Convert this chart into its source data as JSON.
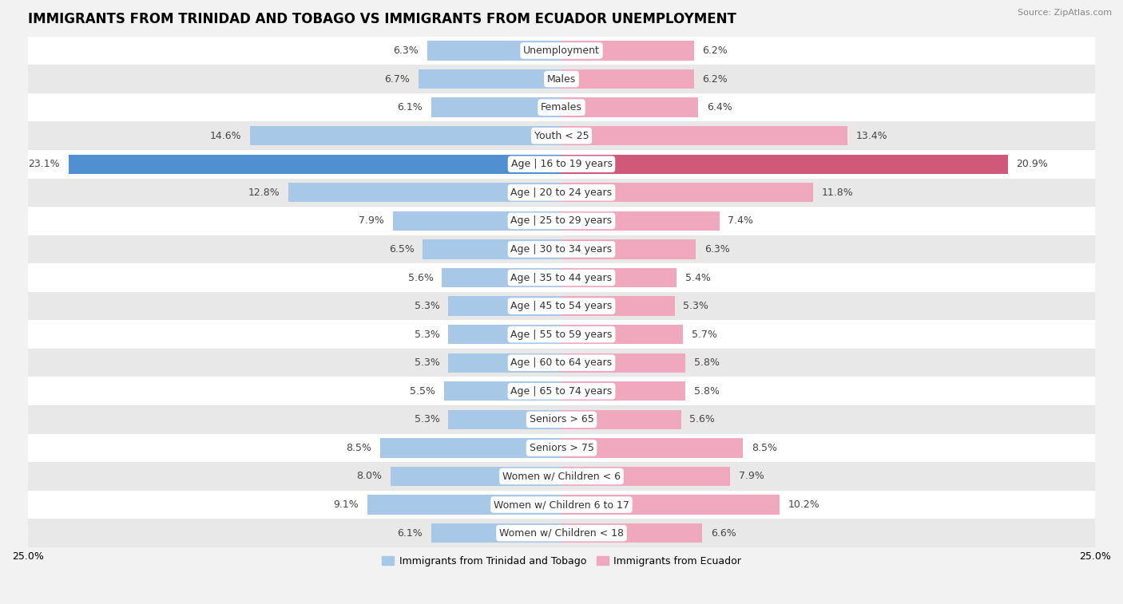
{
  "title": "IMMIGRANTS FROM TRINIDAD AND TOBAGO VS IMMIGRANTS FROM ECUADOR UNEMPLOYMENT",
  "source": "Source: ZipAtlas.com",
  "categories": [
    "Unemployment",
    "Males",
    "Females",
    "Youth < 25",
    "Age | 16 to 19 years",
    "Age | 20 to 24 years",
    "Age | 25 to 29 years",
    "Age | 30 to 34 years",
    "Age | 35 to 44 years",
    "Age | 45 to 54 years",
    "Age | 55 to 59 years",
    "Age | 60 to 64 years",
    "Age | 65 to 74 years",
    "Seniors > 65",
    "Seniors > 75",
    "Women w/ Children < 6",
    "Women w/ Children 6 to 17",
    "Women w/ Children < 18"
  ],
  "left_values": [
    6.3,
    6.7,
    6.1,
    14.6,
    23.1,
    12.8,
    7.9,
    6.5,
    5.6,
    5.3,
    5.3,
    5.3,
    5.5,
    5.3,
    8.5,
    8.0,
    9.1,
    6.1
  ],
  "right_values": [
    6.2,
    6.2,
    6.4,
    13.4,
    20.9,
    11.8,
    7.4,
    6.3,
    5.4,
    5.3,
    5.7,
    5.8,
    5.8,
    5.6,
    8.5,
    7.9,
    10.2,
    6.6
  ],
  "left_color": "#a8c8e8",
  "right_color": "#f0a8be",
  "left_highlight_color": "#5090d0",
  "right_highlight_color": "#d05878",
  "highlight_rows": [
    4
  ],
  "background_color": "#f2f2f2",
  "row_bg_even": "#ffffff",
  "row_bg_odd": "#e8e8e8",
  "label_left": "Immigrants from Trinidad and Tobago",
  "label_right": "Immigrants from Ecuador",
  "x_max": 25.0,
  "bar_height": 0.68,
  "title_fontsize": 12,
  "source_fontsize": 8,
  "value_fontsize": 9,
  "category_fontsize": 9
}
